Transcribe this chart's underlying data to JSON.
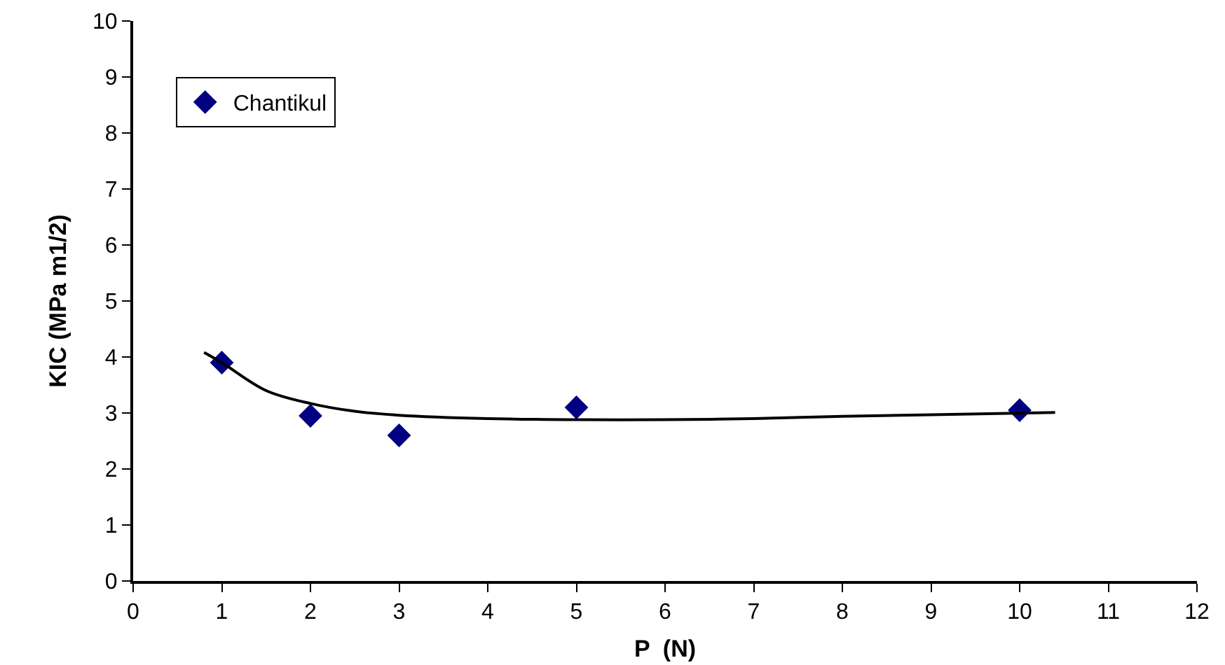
{
  "chart_data": {
    "type": "scatter",
    "xlabel": "P  (N)",
    "ylabel": "KIC (MPa m1/2)",
    "xlim": [
      0,
      12
    ],
    "xticks": [
      0,
      1,
      2,
      3,
      4,
      5,
      6,
      7,
      8,
      9,
      10,
      11,
      12
    ],
    "ylim": [
      0,
      10
    ],
    "yticks": [
      0,
      1,
      2,
      3,
      4,
      5,
      6,
      7,
      8,
      9,
      10
    ],
    "grid": false,
    "legend": "top left",
    "series": [
      {
        "name": "Chantikul",
        "color": "#000080",
        "marker": "diamond",
        "x": [
          1,
          2,
          3,
          5,
          10
        ],
        "values": [
          3.9,
          2.95,
          2.6,
          3.1,
          3.05
        ]
      },
      {
        "type": "line",
        "color": "#000000",
        "line_style": "solid",
        "marker": "none",
        "x": [
          0.8,
          1,
          1.5,
          2,
          2.5,
          3,
          4,
          5,
          6,
          7,
          8,
          9,
          10.4
        ],
        "values": [
          4.08,
          3.9,
          3.4,
          3.17,
          3.03,
          2.96,
          2.9,
          2.88,
          2.88,
          2.9,
          2.94,
          2.97,
          3.01
        ]
      }
    ]
  }
}
